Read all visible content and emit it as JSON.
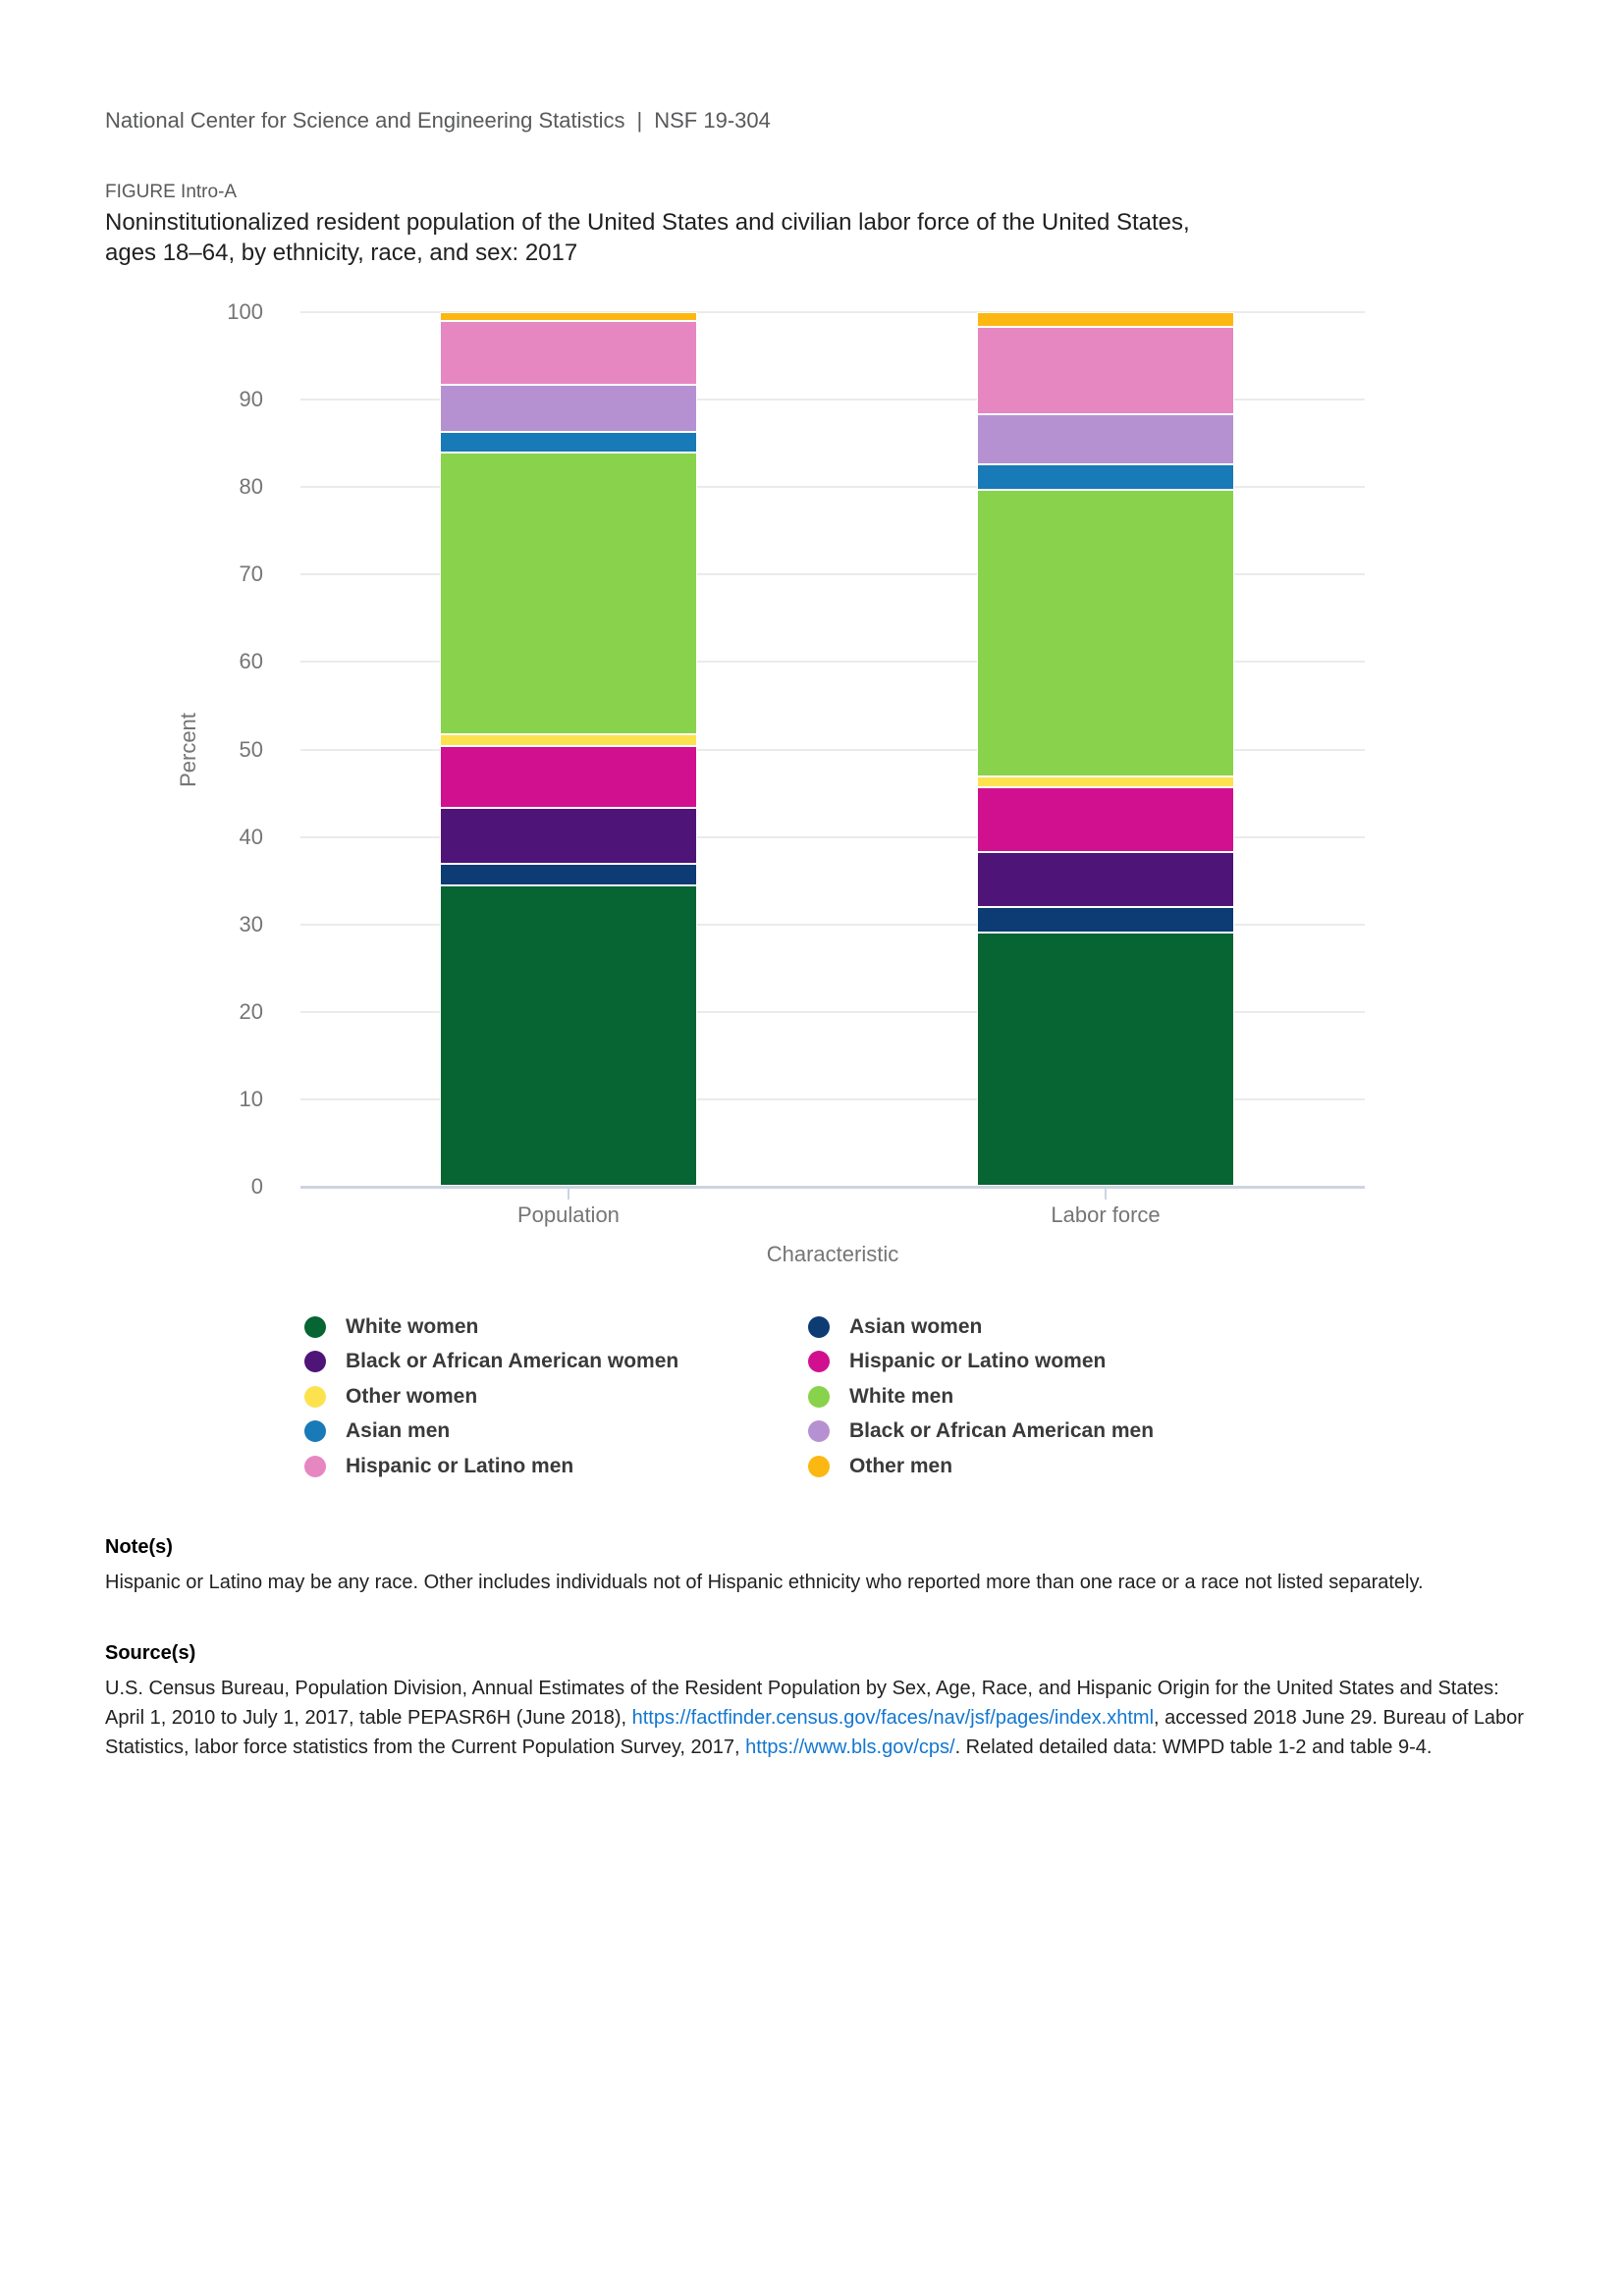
{
  "header": {
    "organization": "National Center for Science and Engineering Statistics",
    "separator": "|",
    "report_number": "NSF 19-304"
  },
  "figure": {
    "label": "FIGURE Intro-A",
    "title_line1": "Noninstitutionalized resident population of the United States and civilian labor force of the United States,",
    "title_line2": "ages 18–64, by ethnicity, race, and sex: 2017"
  },
  "chart_data": {
    "type": "bar",
    "stacked": true,
    "categories": [
      "Population",
      "Labor force"
    ],
    "xlabel": "Characteristic",
    "ylabel": "Percent",
    "ylim": [
      0,
      100
    ],
    "yticks": [
      0,
      10,
      20,
      30,
      40,
      50,
      60,
      70,
      80,
      90,
      100
    ],
    "grid": true,
    "legend_position": "bottom",
    "series": [
      {
        "name": "White women",
        "color": "#076433",
        "values": [
          34.4,
          29.0
        ]
      },
      {
        "name": "Asian women",
        "color": "#0d3b73",
        "values": [
          2.5,
          2.9
        ]
      },
      {
        "name": "Black or African American women",
        "color": "#4f1478",
        "values": [
          6.4,
          6.3
        ]
      },
      {
        "name": "Hispanic or Latino women",
        "color": "#d11090",
        "values": [
          7.0,
          7.4
        ]
      },
      {
        "name": "Other women",
        "color": "#fce24e",
        "values": [
          1.4,
          1.3
        ]
      },
      {
        "name": "White men",
        "color": "#89d24b",
        "values": [
          32.2,
          32.8
        ]
      },
      {
        "name": "Asian men",
        "color": "#187ab6",
        "values": [
          2.4,
          2.9
        ]
      },
      {
        "name": "Black or African American men",
        "color": "#b691d1",
        "values": [
          5.4,
          5.7
        ]
      },
      {
        "name": "Hispanic or Latino men",
        "color": "#e687c2",
        "values": [
          7.3,
          10.0
        ]
      },
      {
        "name": "Other men",
        "color": "#fdb713",
        "values": [
          1.0,
          1.7
        ]
      }
    ],
    "bar_center_percents": [
      25.18,
      75.65
    ]
  },
  "notes": {
    "heading": "Note(s)",
    "text": "Hispanic or Latino may be any race. Other includes individuals not of Hispanic ethnicity who reported more than one race or a race not listed separately."
  },
  "sources": {
    "heading": "Source(s)",
    "segments": [
      {
        "text": "U.S. Census Bureau, Population Division, Annual Estimates of the Resident Population by Sex, Age, Race, and Hispanic Origin for the United States and States: April 1, 2010 to July 1, 2017, table PEPASR6H (June 2018), ",
        "link": false
      },
      {
        "text": "https://factfinder.census.gov/faces/nav/jsf/pages/index.xhtml",
        "link": true
      },
      {
        "text": ", accessed 2018 June 29. Bureau of Labor Statistics, labor force statistics from the Current Population Survey, 2017, ",
        "link": false
      },
      {
        "text": "https://www.bls.gov/cps/",
        "link": true
      },
      {
        "text": ". Related detailed data: WMPD table 1-2 and table 9-4.",
        "link": false
      }
    ]
  }
}
